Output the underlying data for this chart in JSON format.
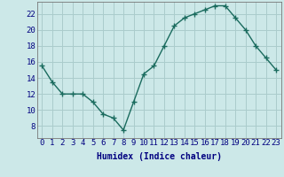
{
  "x": [
    0,
    1,
    2,
    3,
    4,
    5,
    6,
    7,
    8,
    9,
    10,
    11,
    12,
    13,
    14,
    15,
    16,
    17,
    18,
    19,
    20,
    21,
    22,
    23
  ],
  "y": [
    15.5,
    13.5,
    12.0,
    12.0,
    12.0,
    11.0,
    9.5,
    9.0,
    7.5,
    11.0,
    14.5,
    15.5,
    18.0,
    20.5,
    21.5,
    22.0,
    22.5,
    23.0,
    23.0,
    21.5,
    20.0,
    18.0,
    16.5,
    15.0
  ],
  "line_color": "#1a6b5e",
  "marker": "+",
  "marker_size": 4,
  "bg_color": "#cce8e8",
  "grid_color": "#aacccc",
  "xlabel": "Humidex (Indice chaleur)",
  "xlim": [
    -0.5,
    23.5
  ],
  "ylim": [
    6.5,
    23.5
  ],
  "yticks": [
    8,
    10,
    12,
    14,
    16,
    18,
    20,
    22
  ],
  "xticks": [
    0,
    1,
    2,
    3,
    4,
    5,
    6,
    7,
    8,
    9,
    10,
    11,
    12,
    13,
    14,
    15,
    16,
    17,
    18,
    19,
    20,
    21,
    22,
    23
  ],
  "xlabel_fontsize": 7,
  "tick_fontsize": 6.5,
  "line_width": 1.0,
  "tick_label_color": "#000080",
  "xlabel_color": "#000080"
}
